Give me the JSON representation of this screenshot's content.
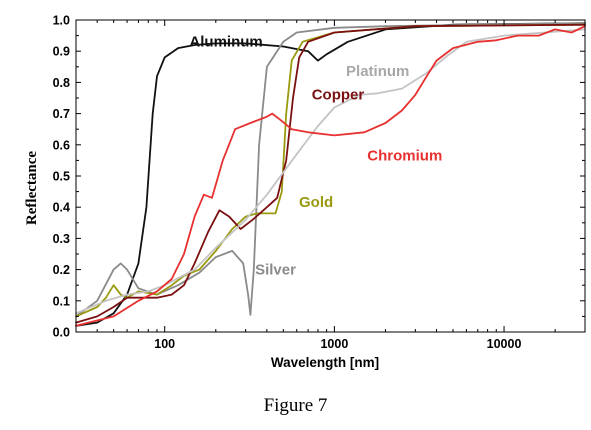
{
  "caption": "Figure 7",
  "chart_data": {
    "type": "line",
    "title": "",
    "xlabel": "Wavelength [nm]",
    "ylabel": "Reflectance",
    "xscale": "log",
    "xlim": [
      30,
      30000
    ],
    "ylim": [
      0,
      1.0
    ],
    "x_ticks": [
      100,
      1000,
      10000
    ],
    "x_tick_labels": [
      "100",
      "1000",
      "10000"
    ],
    "y_ticks": [
      0.0,
      0.1,
      0.2,
      0.3,
      0.4,
      0.5,
      0.6,
      0.7,
      0.8,
      0.9,
      1.0
    ],
    "y_tick_labels": [
      "0.0",
      "0.1",
      "0.2",
      "0.3",
      "0.4",
      "0.5",
      "0.6",
      "0.7",
      "0.8",
      "0.9",
      "1.0"
    ],
    "grid": false,
    "series": [
      {
        "name": "Aluminum",
        "color": "#111111",
        "points": [
          [
            30,
            0.02
          ],
          [
            40,
            0.03
          ],
          [
            50,
            0.06
          ],
          [
            60,
            0.12
          ],
          [
            70,
            0.22
          ],
          [
            78,
            0.4
          ],
          [
            85,
            0.7
          ],
          [
            90,
            0.82
          ],
          [
            100,
            0.88
          ],
          [
            120,
            0.91
          ],
          [
            150,
            0.92
          ],
          [
            200,
            0.925
          ],
          [
            300,
            0.925
          ],
          [
            500,
            0.915
          ],
          [
            700,
            0.9
          ],
          [
            800,
            0.87
          ],
          [
            900,
            0.89
          ],
          [
            1200,
            0.93
          ],
          [
            2000,
            0.97
          ],
          [
            5000,
            0.985
          ],
          [
            30000,
            0.99
          ]
        ]
      },
      {
        "name": "Silver",
        "color": "#8a8a8a",
        "points": [
          [
            30,
            0.05
          ],
          [
            40,
            0.1
          ],
          [
            50,
            0.2
          ],
          [
            55,
            0.22
          ],
          [
            60,
            0.2
          ],
          [
            70,
            0.14
          ],
          [
            90,
            0.12
          ],
          [
            120,
            0.15
          ],
          [
            160,
            0.19
          ],
          [
            200,
            0.24
          ],
          [
            250,
            0.26
          ],
          [
            290,
            0.22
          ],
          [
            310,
            0.12
          ],
          [
            320,
            0.055
          ],
          [
            335,
            0.2
          ],
          [
            360,
            0.6
          ],
          [
            400,
            0.85
          ],
          [
            500,
            0.93
          ],
          [
            600,
            0.96
          ],
          [
            1000,
            0.975
          ],
          [
            2000,
            0.98
          ],
          [
            30000,
            0.99
          ]
        ]
      },
      {
        "name": "Gold",
        "color": "#9a9a10",
        "points": [
          [
            30,
            0.05
          ],
          [
            40,
            0.08
          ],
          [
            45,
            0.11
          ],
          [
            50,
            0.15
          ],
          [
            55,
            0.12
          ],
          [
            60,
            0.11
          ],
          [
            70,
            0.13
          ],
          [
            90,
            0.12
          ],
          [
            110,
            0.15
          ],
          [
            130,
            0.18
          ],
          [
            160,
            0.2
          ],
          [
            200,
            0.26
          ],
          [
            250,
            0.33
          ],
          [
            300,
            0.37
          ],
          [
            350,
            0.38
          ],
          [
            400,
            0.38
          ],
          [
            450,
            0.38
          ],
          [
            490,
            0.45
          ],
          [
            520,
            0.7
          ],
          [
            560,
            0.87
          ],
          [
            650,
            0.93
          ],
          [
            1000,
            0.96
          ],
          [
            3000,
            0.98
          ],
          [
            30000,
            0.985
          ]
        ]
      },
      {
        "name": "Copper",
        "color": "#7a1010",
        "points": [
          [
            30,
            0.03
          ],
          [
            40,
            0.05
          ],
          [
            50,
            0.08
          ],
          [
            60,
            0.11
          ],
          [
            70,
            0.11
          ],
          [
            90,
            0.11
          ],
          [
            110,
            0.12
          ],
          [
            130,
            0.15
          ],
          [
            150,
            0.22
          ],
          [
            180,
            0.32
          ],
          [
            210,
            0.39
          ],
          [
            240,
            0.37
          ],
          [
            280,
            0.33
          ],
          [
            330,
            0.36
          ],
          [
            400,
            0.4
          ],
          [
            460,
            0.43
          ],
          [
            520,
            0.55
          ],
          [
            570,
            0.75
          ],
          [
            620,
            0.88
          ],
          [
            700,
            0.93
          ],
          [
            1000,
            0.96
          ],
          [
            3000,
            0.98
          ],
          [
            30000,
            0.985
          ]
        ]
      },
      {
        "name": "Platinum",
        "color": "#c4c4c4",
        "points": [
          [
            30,
            0.06
          ],
          [
            45,
            0.1
          ],
          [
            60,
            0.12
          ],
          [
            80,
            0.13
          ],
          [
            100,
            0.15
          ],
          [
            150,
            0.2
          ],
          [
            200,
            0.27
          ],
          [
            300,
            0.36
          ],
          [
            400,
            0.44
          ],
          [
            600,
            0.57
          ],
          [
            800,
            0.66
          ],
          [
            1000,
            0.72
          ],
          [
            1400,
            0.76
          ],
          [
            1800,
            0.765
          ],
          [
            2500,
            0.78
          ],
          [
            3500,
            0.83
          ],
          [
            4500,
            0.88
          ],
          [
            6000,
            0.93
          ],
          [
            10000,
            0.95
          ],
          [
            30000,
            0.97
          ]
        ]
      },
      {
        "name": "Chromium",
        "color": "#e83030",
        "points": [
          [
            30,
            0.02
          ],
          [
            50,
            0.05
          ],
          [
            70,
            0.1
          ],
          [
            90,
            0.13
          ],
          [
            110,
            0.17
          ],
          [
            130,
            0.25
          ],
          [
            150,
            0.37
          ],
          [
            170,
            0.44
          ],
          [
            190,
            0.43
          ],
          [
            220,
            0.55
          ],
          [
            260,
            0.65
          ],
          [
            320,
            0.67
          ],
          [
            400,
            0.69
          ],
          [
            430,
            0.7
          ],
          [
            480,
            0.68
          ],
          [
            560,
            0.65
          ],
          [
            700,
            0.64
          ],
          [
            1000,
            0.63
          ],
          [
            1500,
            0.64
          ],
          [
            2000,
            0.67
          ],
          [
            2500,
            0.71
          ],
          [
            3000,
            0.76
          ],
          [
            3500,
            0.82
          ],
          [
            4000,
            0.87
          ],
          [
            5000,
            0.91
          ],
          [
            7000,
            0.93
          ],
          [
            9000,
            0.935
          ],
          [
            12000,
            0.95
          ],
          [
            16000,
            0.95
          ],
          [
            20000,
            0.97
          ],
          [
            25000,
            0.96
          ],
          [
            30000,
            0.98
          ]
        ]
      }
    ],
    "annotations": [
      {
        "text": "Aluminum",
        "color": "#111111",
        "x": 230,
        "y": 0.915
      },
      {
        "text": "Platinum",
        "color": "#a8a8a8",
        "x": 1800,
        "y": 0.82
      },
      {
        "text": "Copper",
        "color": "#7a1010",
        "x": 1050,
        "y": 0.745
      },
      {
        "text": "Chromium",
        "color": "#e83030",
        "x": 2600,
        "y": 0.55
      },
      {
        "text": "Gold",
        "color": "#9a9a10",
        "x": 780,
        "y": 0.4
      },
      {
        "text": "Silver",
        "color": "#8a8a8a",
        "x": 450,
        "y": 0.185
      }
    ]
  }
}
